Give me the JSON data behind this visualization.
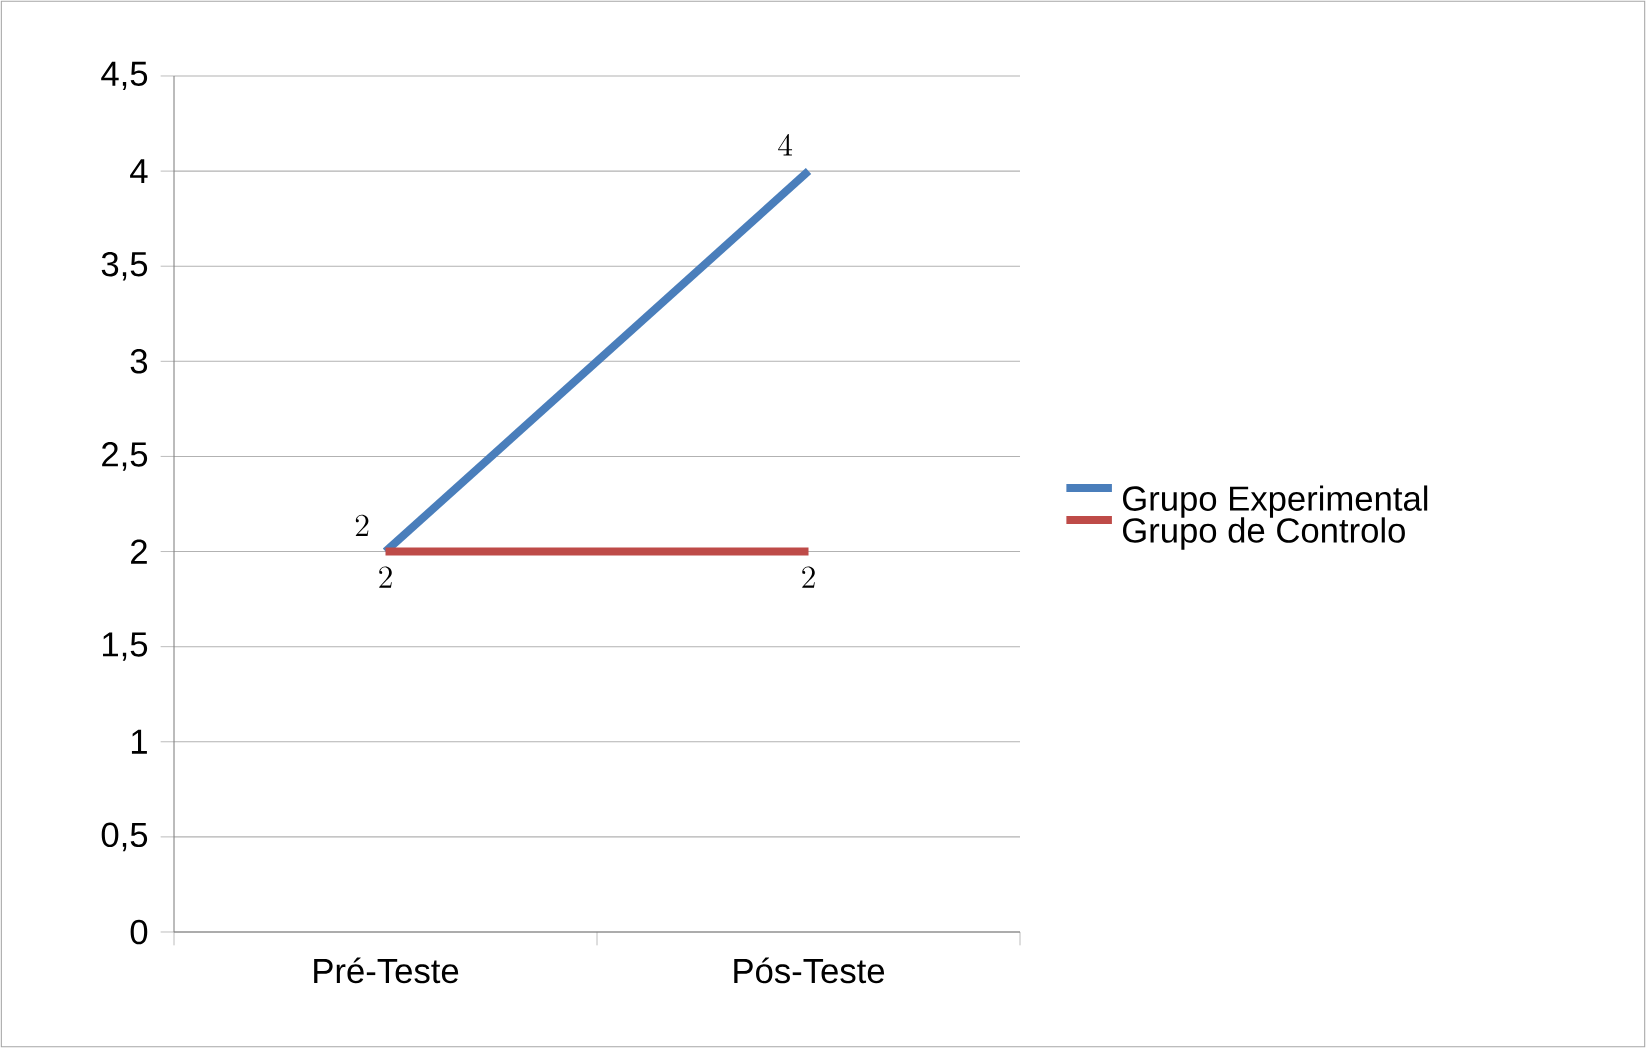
{
  "chart_data": {
    "type": "line",
    "categories": [
      "Pré-Teste",
      "Pós-Teste"
    ],
    "series": [
      {
        "name": "Grupo Experimental",
        "color": "#4a7ebb",
        "values": [
          2,
          4
        ]
      },
      {
        "name": "Grupo de Controlo",
        "color": "#be4b48",
        "values": [
          2,
          2
        ]
      }
    ],
    "ylim": [
      0,
      4.5
    ],
    "yticks": [
      0,
      {
        "value": 0.5,
        "label": "0,5"
      },
      1,
      {
        "value": 1.5,
        "label": "1,5"
      },
      2,
      {
        "value": 2.5,
        "label": "2,5"
      },
      3,
      {
        "value": 3.5,
        "label": "3,5"
      },
      4,
      {
        "value": 4.5,
        "label": "4,5"
      }
    ],
    "grid": "y",
    "legend": "right",
    "data_labels": true,
    "marker": "none",
    "line_style": "solid"
  }
}
